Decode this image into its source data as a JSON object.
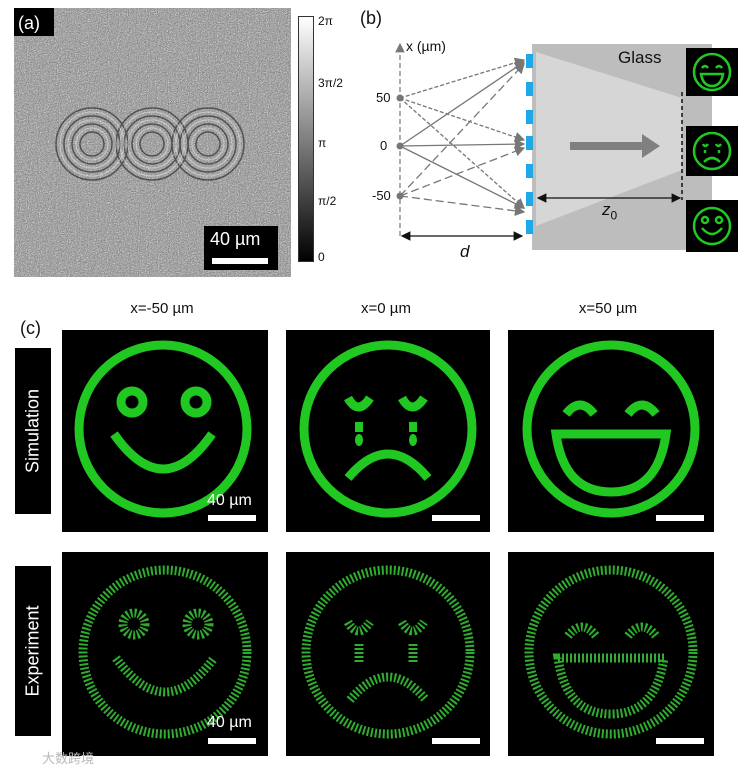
{
  "panel_a": {
    "label": "(a)",
    "scalebar": "40 µm",
    "colorbar_ticks": [
      "2π",
      "3π/2",
      "π",
      "π/2",
      "0"
    ]
  },
  "panel_b": {
    "label": "(b)",
    "axis_label": "x (µm)",
    "x_ticks": [
      "50",
      "0",
      "-50"
    ],
    "glass_label": "Glass",
    "d_label": "d",
    "z_label": "z",
    "z_subscript": "0"
  },
  "panel_c": {
    "label": "(c)",
    "columns": [
      "x=-50 µm",
      "x=0 µm",
      "x=50 µm"
    ],
    "rows": [
      "Simulation",
      "Experiment"
    ],
    "scalebar": "40 µm"
  },
  "watermark": "大数跨境",
  "colors": {
    "green": "#22c822",
    "cyan_pixel": "#1ea8e8",
    "glass": "#b8b8b8"
  }
}
